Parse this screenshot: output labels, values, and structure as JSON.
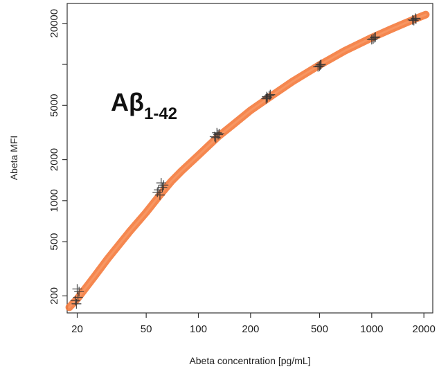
{
  "chart_data": {
    "type": "scatter",
    "title": "",
    "annotation": {
      "main": "Aβ",
      "subscript": "1-42"
    },
    "xlabel": "Abeta concentration [pg/mL]",
    "ylabel": "Abeta MFI",
    "xscale": "log",
    "yscale": "log",
    "xlim": [
      17.5,
      2250
    ],
    "ylim": [
      150,
      28000
    ],
    "xticks": [
      20,
      50,
      100,
      200,
      500,
      1000,
      2000
    ],
    "xtick_labels": [
      "20",
      "50",
      "100",
      "200",
      "500",
      "1000",
      "2000"
    ],
    "yticks": [
      200,
      500,
      1000,
      2000,
      5000,
      10000,
      20000
    ],
    "ytick_labels": [
      "200",
      "500",
      "1000",
      "2000",
      "5000",
      "",
      "20000"
    ],
    "grid": false,
    "legend": "none",
    "colors": {
      "fit_curve": "#f47a3c",
      "points": "#333333"
    },
    "fit_curve": {
      "x": [
        18,
        20,
        25,
        30,
        40,
        50,
        60,
        70,
        80,
        100,
        130,
        160,
        200,
        260,
        350,
        500,
        700,
        1000,
        1300,
        1750,
        2050
      ],
      "y": [
        165,
        190,
        275,
        375,
        590,
        820,
        1100,
        1390,
        1650,
        2150,
        2950,
        3650,
        4600,
        5800,
        7500,
        9900,
        12600,
        15700,
        18200,
        21400,
        23200
      ]
    },
    "series": [
      {
        "x": [
          19.8,
          20.2,
          20.5,
          19.5,
          20.0,
          60,
          62,
          58,
          61,
          59,
          63,
          126,
          130,
          128,
          124,
          132,
          250,
          256,
          246,
          260,
          248,
          500,
          510,
          490,
          505,
          1020,
          1050,
          1000,
          1040,
          1750,
          1800,
          1720,
          1790
        ],
        "y": [
          175,
          195,
          215,
          185,
          225,
          1100,
          1250,
          1150,
          1350,
          1200,
          1300,
          2900,
          3050,
          3150,
          2950,
          3100,
          5700,
          5900,
          5600,
          6000,
          5800,
          9700,
          10000,
          9600,
          9900,
          15400,
          15900,
          15200,
          15700,
          21000,
          21500,
          21200,
          21800
        ]
      }
    ]
  }
}
